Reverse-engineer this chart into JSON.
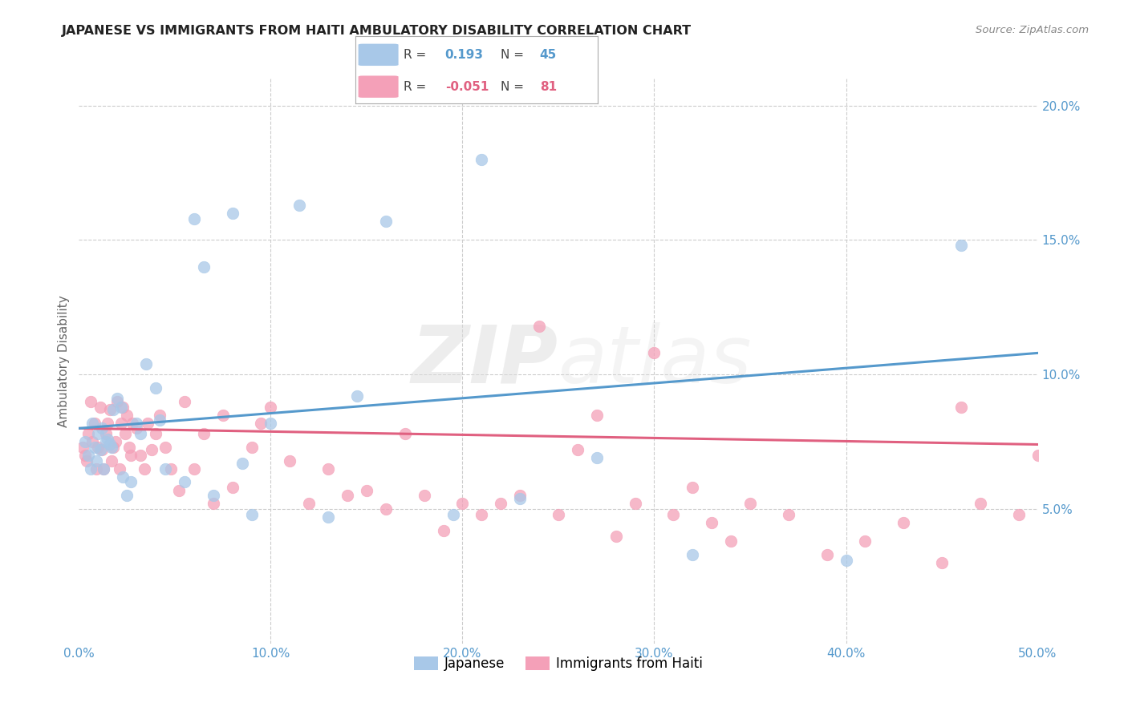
{
  "title": "JAPANESE VS IMMIGRANTS FROM HAITI AMBULATORY DISABILITY CORRELATION CHART",
  "source": "Source: ZipAtlas.com",
  "ylabel": "Ambulatory Disability",
  "watermark": "ZIPatlas",
  "xlim": [
    0.0,
    0.5
  ],
  "ylim": [
    0.0,
    0.21
  ],
  "yticks": [
    0.05,
    0.1,
    0.15,
    0.2
  ],
  "ytick_labels": [
    "5.0%",
    "10.0%",
    "15.0%",
    "20.0%"
  ],
  "blue_color": "#a8c8e8",
  "pink_color": "#f4a0b8",
  "blue_line_color": "#5599cc",
  "pink_line_color": "#e06080",
  "grid_color": "#cccccc",
  "background_color": "#ffffff",
  "blue_scatter_x": [
    0.003,
    0.005,
    0.006,
    0.007,
    0.008,
    0.009,
    0.01,
    0.011,
    0.012,
    0.013,
    0.014,
    0.015,
    0.016,
    0.017,
    0.018,
    0.02,
    0.022,
    0.023,
    0.025,
    0.027,
    0.03,
    0.032,
    0.04,
    0.042,
    0.045,
    0.055,
    0.065,
    0.085,
    0.09,
    0.115,
    0.13,
    0.16,
    0.195,
    0.23,
    0.27,
    0.32,
    0.4,
    0.46,
    0.06,
    0.08,
    0.1,
    0.145,
    0.21,
    0.035,
    0.07
  ],
  "blue_scatter_y": [
    0.075,
    0.07,
    0.065,
    0.082,
    0.073,
    0.068,
    0.078,
    0.072,
    0.08,
    0.065,
    0.075,
    0.076,
    0.074,
    0.073,
    0.087,
    0.091,
    0.088,
    0.062,
    0.055,
    0.06,
    0.082,
    0.078,
    0.095,
    0.083,
    0.065,
    0.06,
    0.14,
    0.067,
    0.048,
    0.163,
    0.047,
    0.157,
    0.048,
    0.054,
    0.069,
    0.033,
    0.031,
    0.148,
    0.158,
    0.16,
    0.082,
    0.092,
    0.18,
    0.104,
    0.055
  ],
  "pink_scatter_x": [
    0.002,
    0.003,
    0.004,
    0.005,
    0.006,
    0.007,
    0.008,
    0.009,
    0.01,
    0.011,
    0.012,
    0.013,
    0.014,
    0.015,
    0.016,
    0.017,
    0.018,
    0.019,
    0.02,
    0.021,
    0.022,
    0.023,
    0.025,
    0.027,
    0.03,
    0.032,
    0.036,
    0.04,
    0.045,
    0.052,
    0.06,
    0.07,
    0.08,
    0.095,
    0.11,
    0.13,
    0.15,
    0.17,
    0.19,
    0.21,
    0.23,
    0.26,
    0.29,
    0.32,
    0.35,
    0.39,
    0.43,
    0.46,
    0.49,
    0.024,
    0.026,
    0.028,
    0.034,
    0.038,
    0.042,
    0.048,
    0.055,
    0.065,
    0.075,
    0.09,
    0.1,
    0.12,
    0.14,
    0.16,
    0.18,
    0.2,
    0.22,
    0.24,
    0.25,
    0.27,
    0.28,
    0.3,
    0.31,
    0.33,
    0.34,
    0.37,
    0.41,
    0.45,
    0.47,
    0.5
  ],
  "pink_scatter_y": [
    0.073,
    0.07,
    0.068,
    0.078,
    0.09,
    0.075,
    0.082,
    0.065,
    0.073,
    0.088,
    0.072,
    0.065,
    0.078,
    0.082,
    0.087,
    0.068,
    0.073,
    0.075,
    0.09,
    0.065,
    0.082,
    0.088,
    0.085,
    0.07,
    0.08,
    0.07,
    0.082,
    0.078,
    0.073,
    0.057,
    0.065,
    0.052,
    0.058,
    0.082,
    0.068,
    0.065,
    0.057,
    0.078,
    0.042,
    0.048,
    0.055,
    0.072,
    0.052,
    0.058,
    0.052,
    0.033,
    0.045,
    0.088,
    0.048,
    0.078,
    0.073,
    0.082,
    0.065,
    0.072,
    0.085,
    0.065,
    0.09,
    0.078,
    0.085,
    0.073,
    0.088,
    0.052,
    0.055,
    0.05,
    0.055,
    0.052,
    0.052,
    0.118,
    0.048,
    0.085,
    0.04,
    0.108,
    0.048,
    0.045,
    0.038,
    0.048,
    0.038,
    0.03,
    0.052,
    0.07
  ],
  "blue_line_x0": 0.0,
  "blue_line_y0": 0.08,
  "blue_line_x1": 0.5,
  "blue_line_y1": 0.108,
  "pink_line_x0": 0.0,
  "pink_line_y0": 0.08,
  "pink_line_x1": 0.5,
  "pink_line_y1": 0.074
}
